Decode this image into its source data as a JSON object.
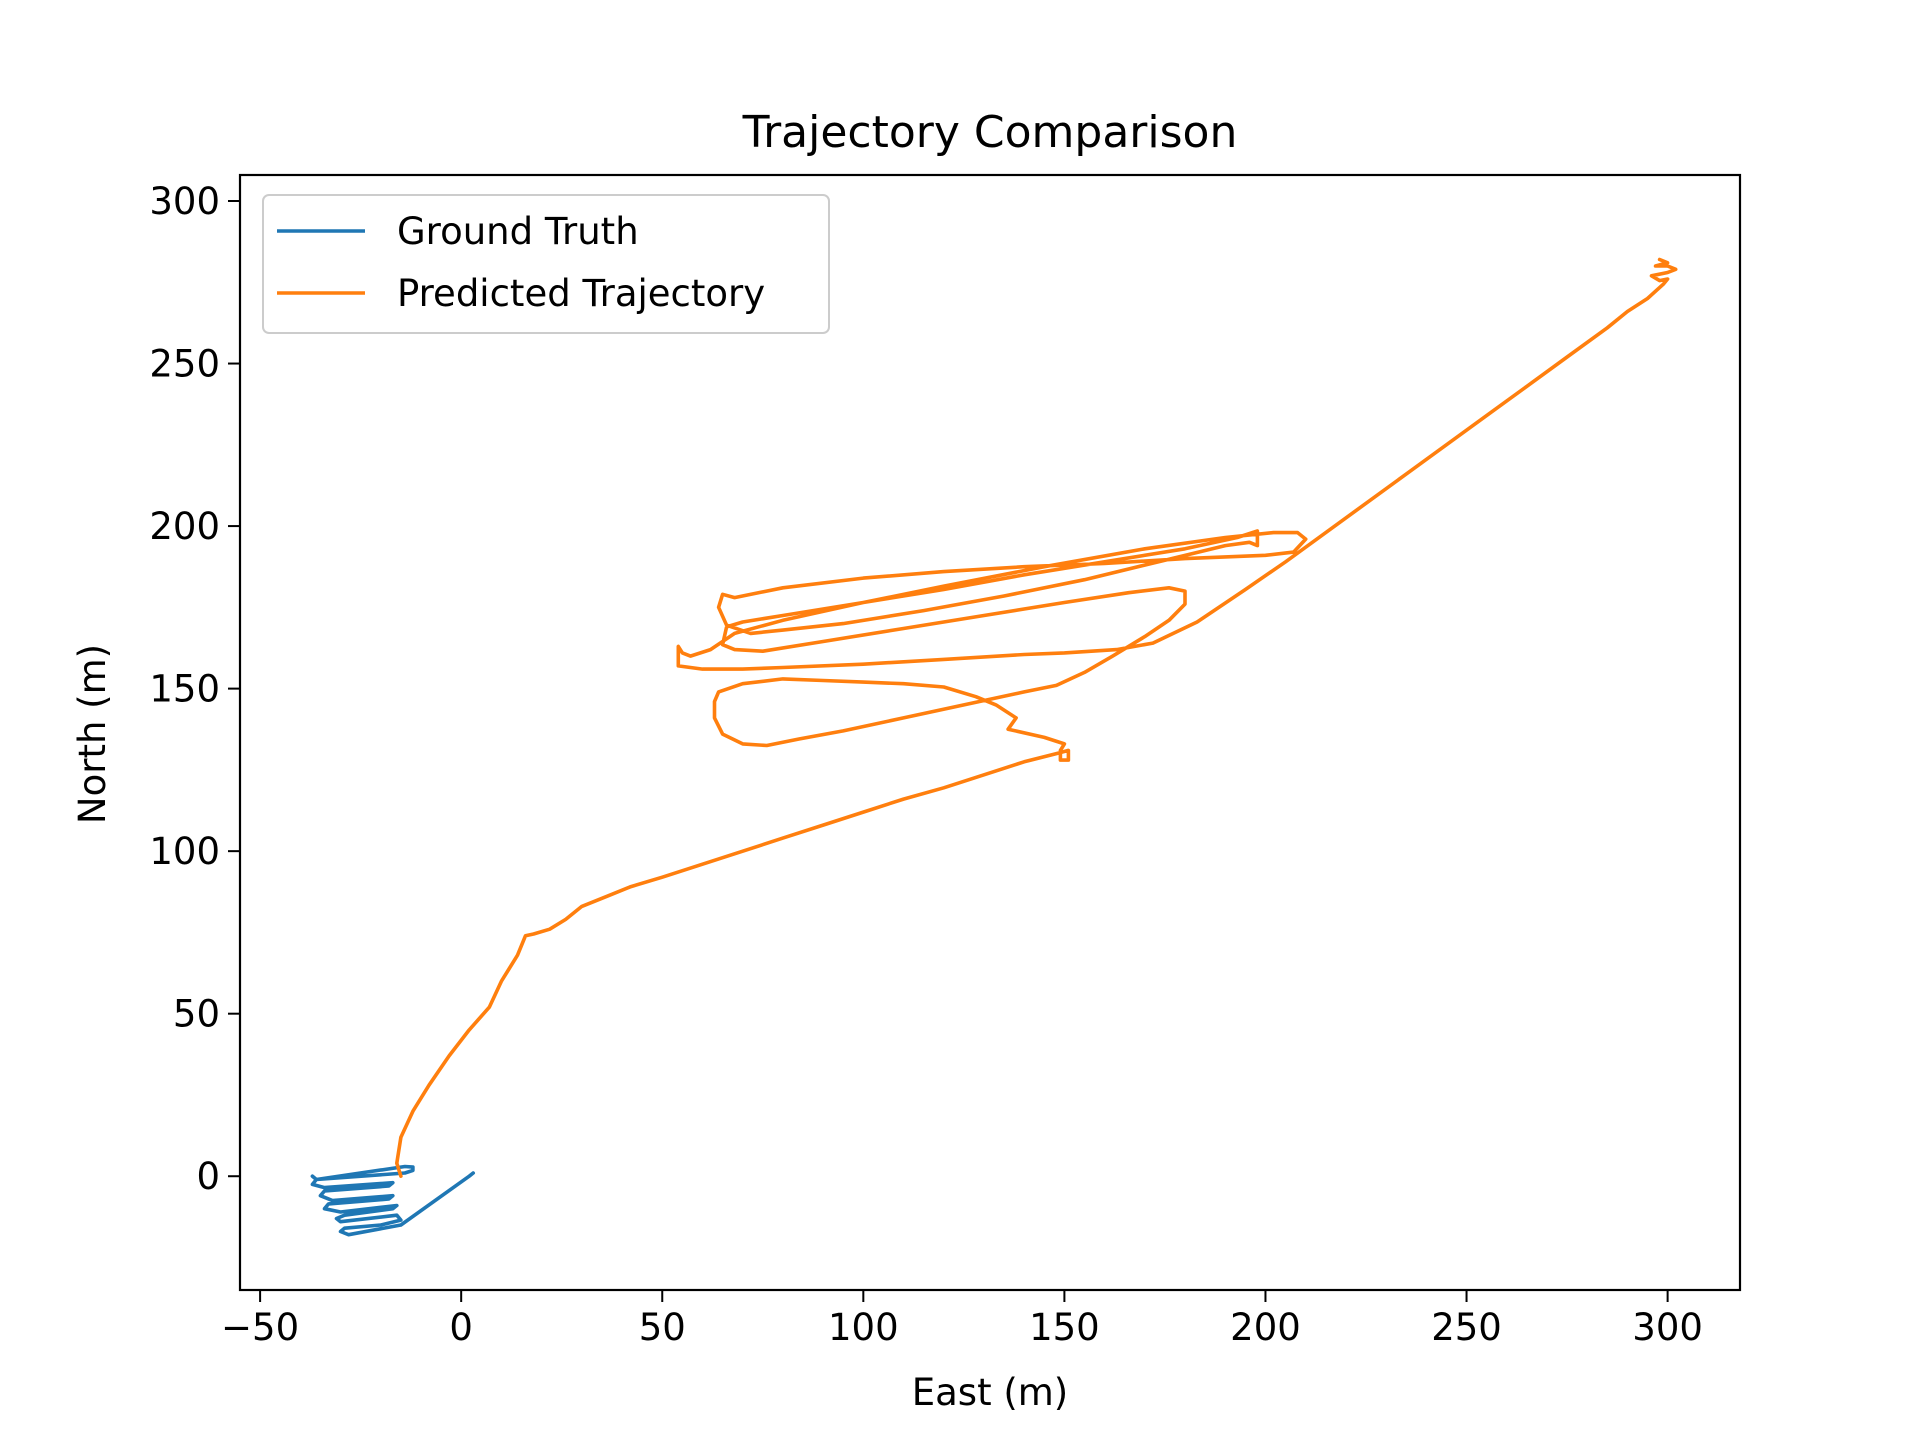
{
  "chart_data": {
    "type": "line",
    "title": "Trajectory Comparison",
    "xlabel": "East (m)",
    "ylabel": "North (m)",
    "xlim": [
      -55,
      318
    ],
    "ylim": [
      -35,
      308
    ],
    "xticks": [
      -50,
      0,
      50,
      100,
      150,
      200,
      250,
      300
    ],
    "yticks": [
      0,
      50,
      100,
      150,
      200,
      250,
      300
    ],
    "xtick_labels": [
      "−50",
      "0",
      "50",
      "100",
      "150",
      "200",
      "250",
      "300"
    ],
    "ytick_labels": [
      "0",
      "50",
      "100",
      "150",
      "200",
      "250",
      "300"
    ],
    "grid": false,
    "legend_position": "upper-left",
    "series": [
      {
        "name": "Ground Truth",
        "color": "#1f77b4",
        "points": [
          [
            3,
            1
          ],
          [
            2,
            0
          ],
          [
            -15,
            -15
          ],
          [
            -28,
            -18
          ],
          [
            -30,
            -17
          ],
          [
            -29,
            -16
          ],
          [
            -20,
            -15
          ],
          [
            -15,
            -13.5
          ],
          [
            -16,
            -12
          ],
          [
            -30,
            -14
          ],
          [
            -31,
            -13
          ],
          [
            -29,
            -12
          ],
          [
            -17,
            -10
          ],
          [
            -16,
            -9
          ],
          [
            -30,
            -11
          ],
          [
            -34,
            -10
          ],
          [
            -33,
            -8.5
          ],
          [
            -18,
            -7
          ],
          [
            -17,
            -6
          ],
          [
            -32,
            -7.5
          ],
          [
            -35,
            -6
          ],
          [
            -34,
            -4.5
          ],
          [
            -18,
            -3
          ],
          [
            -17,
            -2
          ],
          [
            -34,
            -3.5
          ],
          [
            -37,
            -2.5
          ],
          [
            -36,
            -1
          ],
          [
            -14,
            1
          ],
          [
            -12,
            1.8
          ],
          [
            -12,
            2.8
          ],
          [
            -14,
            3
          ],
          [
            -36,
            -1
          ],
          [
            -37,
            0
          ]
        ]
      },
      {
        "name": "Predicted Trajectory",
        "color": "#ff7f0e",
        "points": [
          [
            -15,
            0
          ],
          [
            -16,
            4
          ],
          [
            -15,
            12
          ],
          [
            -12,
            20
          ],
          [
            -8,
            28
          ],
          [
            -3,
            37
          ],
          [
            2,
            45
          ],
          [
            7,
            52
          ],
          [
            10,
            60
          ],
          [
            14,
            68
          ],
          [
            16,
            74
          ],
          [
            18,
            74.5
          ],
          [
            22,
            76
          ],
          [
            26,
            79
          ],
          [
            30,
            83
          ],
          [
            36,
            86
          ],
          [
            42,
            89
          ],
          [
            50,
            92
          ],
          [
            60,
            96
          ],
          [
            70,
            100
          ],
          [
            80,
            104
          ],
          [
            90,
            108
          ],
          [
            100,
            112
          ],
          [
            110,
            116
          ],
          [
            120,
            119.5
          ],
          [
            130,
            123.5
          ],
          [
            140,
            127.5
          ],
          [
            148,
            130
          ],
          [
            151,
            131
          ],
          [
            151,
            128
          ],
          [
            149,
            128
          ],
          [
            149,
            131
          ],
          [
            150,
            133
          ],
          [
            145,
            135
          ],
          [
            136,
            137.5
          ],
          [
            138,
            141
          ],
          [
            133,
            145
          ],
          [
            128,
            147.5
          ],
          [
            120,
            150.5
          ],
          [
            110,
            151.5
          ],
          [
            100,
            152
          ],
          [
            90,
            152.5
          ],
          [
            80,
            153
          ],
          [
            70,
            151.5
          ],
          [
            64,
            149
          ],
          [
            63,
            146
          ],
          [
            63,
            141
          ],
          [
            65,
            136
          ],
          [
            70,
            133
          ],
          [
            76,
            132.5
          ],
          [
            84,
            134.5
          ],
          [
            95,
            137
          ],
          [
            110,
            141
          ],
          [
            125,
            145
          ],
          [
            140,
            149
          ],
          [
            148,
            151
          ],
          [
            155,
            155
          ],
          [
            162,
            160
          ],
          [
            170,
            166
          ],
          [
            176,
            171
          ],
          [
            180,
            176
          ],
          [
            180,
            180
          ],
          [
            176,
            181
          ],
          [
            166,
            179.5
          ],
          [
            150,
            176.5
          ],
          [
            130,
            172.5
          ],
          [
            110,
            168.5
          ],
          [
            90,
            164.5
          ],
          [
            75,
            161.5
          ],
          [
            68,
            162
          ],
          [
            65,
            163.5
          ],
          [
            66,
            169
          ],
          [
            70,
            170.5
          ],
          [
            80,
            172.5
          ],
          [
            100,
            176.5
          ],
          [
            120,
            180.5
          ],
          [
            140,
            185
          ],
          [
            160,
            189
          ],
          [
            180,
            193
          ],
          [
            193,
            196.5
          ],
          [
            198,
            198.5
          ],
          [
            198,
            194
          ],
          [
            196,
            195
          ],
          [
            190,
            194
          ],
          [
            175,
            189.5
          ],
          [
            155,
            183.5
          ],
          [
            135,
            178.5
          ],
          [
            115,
            174
          ],
          [
            95,
            170
          ],
          [
            80,
            168
          ],
          [
            72,
            167
          ],
          [
            66,
            169.5
          ],
          [
            64,
            175
          ],
          [
            65,
            179
          ],
          [
            68,
            178
          ],
          [
            80,
            181
          ],
          [
            100,
            184
          ],
          [
            120,
            186
          ],
          [
            140,
            187.5
          ],
          [
            160,
            188.5
          ],
          [
            180,
            190
          ],
          [
            200,
            191
          ],
          [
            207,
            192
          ],
          [
            210,
            196
          ],
          [
            208,
            198
          ],
          [
            202,
            198
          ],
          [
            190,
            196.5
          ],
          [
            170,
            193
          ],
          [
            145,
            187.5
          ],
          [
            120,
            181.5
          ],
          [
            100,
            176.5
          ],
          [
            80,
            171
          ],
          [
            68,
            167
          ],
          [
            62,
            162
          ],
          [
            57,
            160
          ],
          [
            55,
            161
          ],
          [
            54,
            163
          ],
          [
            54,
            157
          ],
          [
            60,
            156
          ],
          [
            70,
            156
          ],
          [
            80,
            156.5
          ],
          [
            100,
            157.5
          ],
          [
            120,
            159
          ],
          [
            140,
            160.5
          ],
          [
            150,
            161
          ],
          [
            163,
            162
          ],
          [
            172,
            164
          ],
          [
            183,
            170.5
          ],
          [
            195,
            180.5
          ],
          [
            205,
            189
          ],
          [
            215,
            198
          ],
          [
            225,
            207
          ],
          [
            235,
            216
          ],
          [
            245,
            225
          ],
          [
            255,
            234
          ],
          [
            265,
            243
          ],
          [
            275,
            252
          ],
          [
            285,
            261
          ],
          [
            290,
            266
          ],
          [
            295,
            270
          ],
          [
            299,
            274.5
          ],
          [
            300,
            276
          ],
          [
            298,
            275.5
          ],
          [
            296,
            277
          ],
          [
            300,
            278
          ],
          [
            302,
            279
          ],
          [
            300,
            280
          ],
          [
            297,
            280
          ],
          [
            300,
            281
          ],
          [
            298,
            282
          ]
        ]
      }
    ]
  }
}
